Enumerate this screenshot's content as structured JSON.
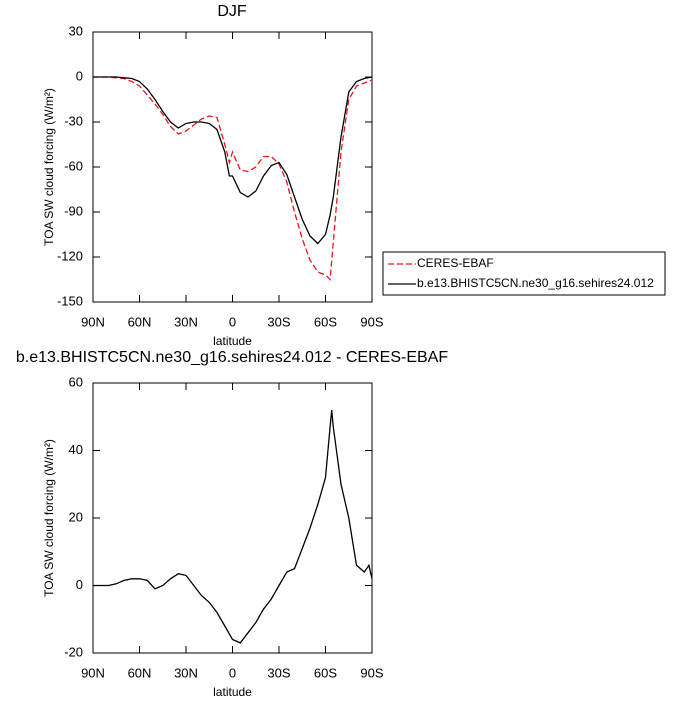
{
  "chart_data": [
    {
      "type": "line",
      "title": "DJF",
      "ylabel": "TOA SW cloud forcing (W/m²)",
      "xlabel": "latitude",
      "xlim": [
        90,
        -90
      ],
      "xticks": [
        {
          "value": 90,
          "label": "90N"
        },
        {
          "value": 60,
          "label": "60N"
        },
        {
          "value": 30,
          "label": "30N"
        },
        0,
        {
          "value": -30,
          "label": "30S"
        },
        {
          "value": -60,
          "label": "60S"
        },
        {
          "value": -90,
          "label": "90S"
        }
      ],
      "ylim": [
        -150,
        30
      ],
      "yticks": [
        -150,
        -120,
        -90,
        -60,
        -30,
        0,
        30
      ],
      "legend": "right",
      "x": [
        90,
        85,
        80,
        75,
        70,
        65,
        60,
        55,
        50,
        45,
        40,
        35,
        30,
        25,
        20,
        15,
        10,
        5,
        2,
        0,
        -5,
        -10,
        -15,
        -20,
        -25,
        -30,
        -35,
        -40,
        -45,
        -50,
        -55,
        -60,
        -63,
        -65,
        -70,
        -75,
        -80,
        -85,
        -90
      ],
      "series": [
        {
          "name": "CERES-EBAF",
          "color": "#e8161b",
          "linestyle": "dashed",
          "values": [
            0,
            0,
            0,
            -0.5,
            -1,
            -3,
            -6,
            -12,
            -18,
            -25,
            -33,
            -38,
            -36,
            -32,
            -28,
            -26,
            -27,
            -45,
            -57,
            -50,
            -62,
            -63,
            -60,
            -53,
            -53,
            -58,
            -70,
            -90,
            -108,
            -122,
            -130,
            -132,
            -135,
            -110,
            -50,
            -15,
            -6,
            -4,
            -2
          ]
        },
        {
          "name": "b.e13.BHISTC5CN.ne30_g16.sehires24.012",
          "color": "#000000",
          "linestyle": "solid",
          "values": [
            0,
            0,
            0,
            0,
            -0.5,
            -1,
            -3,
            -8,
            -15,
            -23,
            -30,
            -34,
            -31,
            -30,
            -30,
            -31,
            -35,
            -50,
            -66,
            -66,
            -77,
            -80,
            -76,
            -66,
            -59,
            -57,
            -65,
            -80,
            -95,
            -106,
            -111,
            -105,
            -92,
            -80,
            -40,
            -10,
            -3,
            -1,
            0
          ]
        }
      ]
    },
    {
      "type": "line",
      "title": "b.e13.BHISTC5CN.ne30_g16.sehires24.012 - CERES-EBAF",
      "ylabel": "TOA SW cloud forcing (W/m²)",
      "xlabel": "latitude",
      "xlim": [
        90,
        -90
      ],
      "xticks": [
        {
          "value": 90,
          "label": "90N"
        },
        {
          "value": 60,
          "label": "60N"
        },
        {
          "value": 30,
          "label": "30N"
        },
        0,
        {
          "value": -30,
          "label": "30S"
        },
        {
          "value": -60,
          "label": "60S"
        },
        {
          "value": -90,
          "label": "90S"
        }
      ],
      "ylim": [
        -20,
        60
      ],
      "yticks": [
        -20,
        0,
        20,
        40,
        60
      ],
      "x": [
        90,
        80,
        75,
        70,
        65,
        60,
        55,
        50,
        45,
        40,
        35,
        30,
        25,
        20,
        15,
        10,
        5,
        0,
        -5,
        -10,
        -15,
        -20,
        -25,
        -30,
        -35,
        -40,
        -45,
        -50,
        -55,
        -60,
        -63,
        -64,
        -65,
        -70,
        -75,
        -80,
        -85,
        -88,
        -90
      ],
      "series": [
        {
          "color": "#000000",
          "linestyle": "solid",
          "values": [
            0,
            0,
            0.5,
            1.5,
            2,
            2,
            1.5,
            -1,
            0,
            2,
            3.5,
            3,
            0,
            -3,
            -5,
            -8,
            -12,
            -16,
            -17,
            -14,
            -11,
            -7,
            -4,
            0,
            4,
            5,
            11,
            17,
            24,
            32,
            47,
            52,
            47,
            30,
            20,
            6,
            4,
            6,
            2
          ]
        }
      ]
    }
  ]
}
